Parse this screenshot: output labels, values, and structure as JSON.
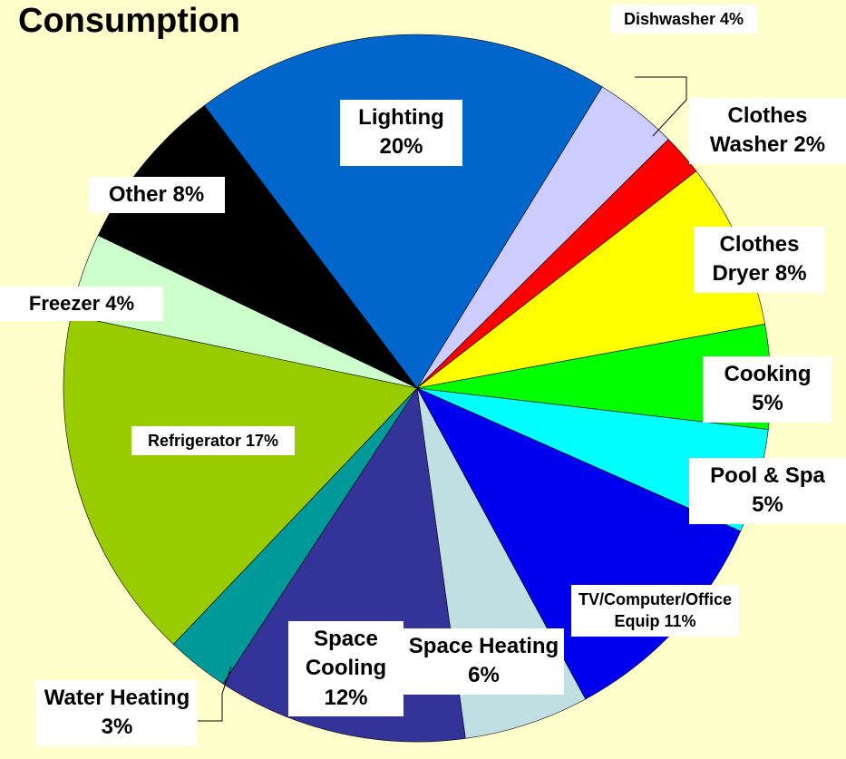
{
  "chart_data": {
    "type": "pie",
    "title": "Consumption",
    "categories": [
      "Lighting",
      "Dishwasher",
      "Clothes Washer",
      "Clothes Dryer",
      "Cooking",
      "Pool & Spa",
      "TV/Computer/Office Equip",
      "Space Heating",
      "Space Cooling",
      "Water Heating",
      "Refrigerator",
      "Freezer",
      "Other"
    ],
    "values": [
      20,
      4,
      2,
      8,
      5,
      5,
      11,
      6,
      12,
      3,
      17,
      4,
      8
    ],
    "value_labels": [
      "20%",
      "4%",
      "2%",
      "8%",
      "5%",
      "5%",
      "11%",
      "6%",
      "12%",
      "3%",
      "17%",
      "4%",
      "8%"
    ],
    "colors": [
      "#0066cc",
      "#ccccff",
      "#ff0000",
      "#ffff00",
      "#00ff00",
      "#00ffff",
      "#0000ee",
      "#bfdfe3",
      "#333399",
      "#009999",
      "#99cc00",
      "#ccffcc",
      "#000000"
    ]
  }
}
